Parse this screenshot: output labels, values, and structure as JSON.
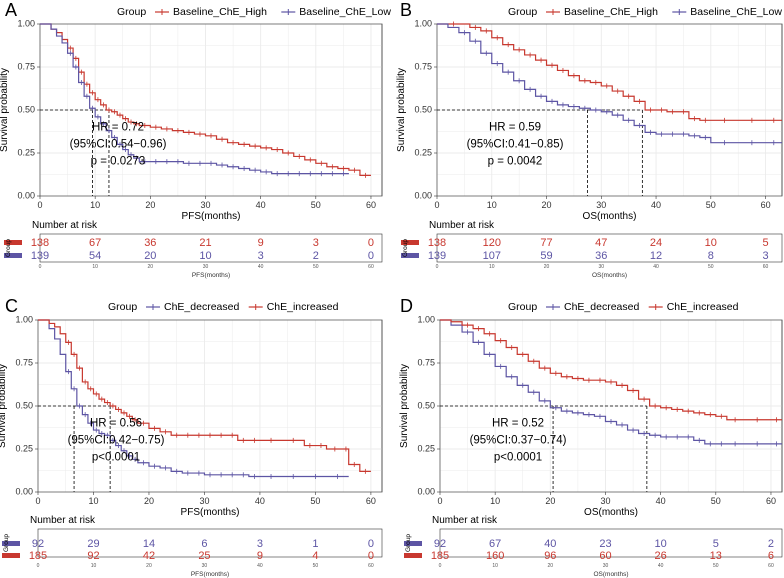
{
  "colors": {
    "red": "#C8382F",
    "blue": "#5D55A4",
    "grid": "#ebebeb",
    "axis": "#333333"
  },
  "chart_data": [
    {
      "panel_label": "A",
      "type": "line",
      "subtype": "kaplan-meier",
      "legend_title": "Group",
      "series": [
        {
          "name": "Baseline_ChE_High",
          "color": "red",
          "x": [
            0,
            2,
            3,
            4,
            5,
            6,
            7,
            8,
            9,
            10,
            11,
            12,
            13,
            14,
            15,
            16,
            17,
            18,
            20,
            22,
            24,
            26,
            28,
            30,
            32,
            34,
            36,
            38,
            40,
            42,
            44,
            46,
            48,
            50,
            52,
            54,
            56,
            58,
            60
          ],
          "y": [
            1.0,
            0.97,
            0.95,
            0.91,
            0.86,
            0.8,
            0.72,
            0.65,
            0.6,
            0.56,
            0.53,
            0.5,
            0.49,
            0.47,
            0.45,
            0.43,
            0.42,
            0.41,
            0.4,
            0.39,
            0.38,
            0.37,
            0.36,
            0.35,
            0.33,
            0.31,
            0.3,
            0.29,
            0.28,
            0.27,
            0.25,
            0.23,
            0.21,
            0.19,
            0.17,
            0.16,
            0.15,
            0.12,
            0.12
          ]
        },
        {
          "name": "Baseline_ChE_Low",
          "color": "blue",
          "x": [
            0,
            2,
            3,
            4,
            5,
            6,
            7,
            8,
            9,
            10,
            11,
            12,
            13,
            14,
            15,
            16,
            17,
            18,
            20,
            22,
            24,
            26,
            28,
            30,
            32,
            34,
            36,
            38,
            40,
            42,
            44,
            46,
            48,
            50,
            52,
            54,
            56
          ],
          "y": [
            1.0,
            0.97,
            0.93,
            0.89,
            0.83,
            0.75,
            0.66,
            0.58,
            0.51,
            0.46,
            0.42,
            0.38,
            0.34,
            0.3,
            0.27,
            0.24,
            0.22,
            0.2,
            0.2,
            0.2,
            0.2,
            0.19,
            0.19,
            0.19,
            0.18,
            0.17,
            0.16,
            0.15,
            0.14,
            0.13,
            0.13,
            0.13,
            0.13,
            0.13,
            0.13,
            0.13,
            0.13
          ]
        }
      ],
      "median_lines": [
        9.5,
        12.5
      ],
      "xlabel": "PFS(months)",
      "ylabel": "Survival probability",
      "xlim": [
        0,
        62
      ],
      "ylim": [
        0,
        1
      ],
      "xticks": [
        "0",
        "10",
        "20",
        "30",
        "40",
        "50",
        "60"
      ],
      "yticks": [
        "0.00",
        "0.25",
        "0.50",
        "0.75",
        "1.00"
      ],
      "annotation": [
        "HR = 0.72",
        "(95%CI:0.54−0.96)",
        "p = 0.0273"
      ],
      "risk_table": {
        "title": "Number at risk",
        "ylabel": "Group",
        "xlabel": "PFS(months)",
        "rows": [
          {
            "color": "red",
            "values": [
              "138",
              "67",
              "36",
              "21",
              "9",
              "3",
              "0"
            ]
          },
          {
            "color": "blue",
            "values": [
              "139",
              "54",
              "20",
              "10",
              "3",
              "2",
              "0"
            ]
          }
        ]
      }
    },
    {
      "panel_label": "B",
      "type": "line",
      "subtype": "kaplan-meier",
      "legend_title": "Group",
      "series": [
        {
          "name": "Baseline_ChE_High",
          "color": "red",
          "x": [
            0,
            6,
            8,
            10,
            12,
            14,
            16,
            18,
            20,
            22,
            24,
            26,
            28,
            30,
            32,
            34,
            36,
            38,
            40,
            42,
            44,
            46,
            48,
            50,
            55,
            60,
            63
          ],
          "y": [
            1.0,
            0.98,
            0.96,
            0.92,
            0.88,
            0.85,
            0.82,
            0.79,
            0.76,
            0.73,
            0.7,
            0.67,
            0.66,
            0.64,
            0.61,
            0.58,
            0.55,
            0.5,
            0.5,
            0.49,
            0.49,
            0.45,
            0.44,
            0.44,
            0.44,
            0.44,
            0.44
          ]
        },
        {
          "name": "Baseline_ChE_Low",
          "color": "blue",
          "x": [
            0,
            2,
            4,
            6,
            8,
            10,
            12,
            14,
            16,
            18,
            20,
            22,
            24,
            26,
            28,
            30,
            32,
            34,
            36,
            38,
            40,
            42,
            44,
            46,
            48,
            50,
            55,
            60,
            63
          ],
          "y": [
            1.0,
            0.98,
            0.95,
            0.9,
            0.83,
            0.77,
            0.72,
            0.67,
            0.62,
            0.58,
            0.55,
            0.53,
            0.52,
            0.51,
            0.5,
            0.49,
            0.47,
            0.44,
            0.41,
            0.37,
            0.36,
            0.36,
            0.36,
            0.35,
            0.34,
            0.31,
            0.31,
            0.31,
            0.31
          ]
        }
      ],
      "median_lines": [
        27.5,
        37.5
      ],
      "xlabel": "OS(months)",
      "ylabel": "Survival probability",
      "xlim": [
        0,
        63
      ],
      "ylim": [
        0,
        1
      ],
      "xticks": [
        "0",
        "10",
        "20",
        "30",
        "40",
        "50",
        "60"
      ],
      "yticks": [
        "0.00",
        "0.25",
        "0.50",
        "0.75",
        "1.00"
      ],
      "annotation": [
        "HR = 0.59",
        "(95%CI:0.41−0.85)",
        "p = 0.0042"
      ],
      "risk_table": {
        "title": "Number at risk",
        "ylabel": "Group",
        "xlabel": "OS(months)",
        "rows": [
          {
            "color": "red",
            "values": [
              "138",
              "120",
              "77",
              "47",
              "24",
              "10",
              "5"
            ]
          },
          {
            "color": "blue",
            "values": [
              "139",
              "107",
              "59",
              "36",
              "12",
              "8",
              "3"
            ]
          }
        ]
      }
    },
    {
      "panel_label": "C",
      "type": "line",
      "subtype": "kaplan-meier",
      "legend_title": "Group",
      "series": [
        {
          "name": "ChE_decreased",
          "color": "blue",
          "x": [
            0,
            2,
            3,
            4,
            5,
            6,
            7,
            8,
            9,
            10,
            11,
            12,
            13,
            14,
            15,
            16,
            17,
            18,
            20,
            22,
            24,
            26,
            28,
            30,
            32,
            34,
            36,
            38,
            40,
            44,
            48,
            52,
            56
          ],
          "y": [
            1.0,
            0.95,
            0.89,
            0.8,
            0.7,
            0.6,
            0.5,
            0.45,
            0.4,
            0.36,
            0.34,
            0.33,
            0.3,
            0.27,
            0.24,
            0.21,
            0.19,
            0.17,
            0.15,
            0.14,
            0.12,
            0.11,
            0.11,
            0.1,
            0.1,
            0.1,
            0.1,
            0.09,
            0.09,
            0.09,
            0.09,
            0.09,
            0.09
          ]
        },
        {
          "name": "ChE_increased",
          "color": "red",
          "x": [
            0,
            2,
            3,
            4,
            5,
            6,
            7,
            8,
            9,
            10,
            11,
            12,
            13,
            14,
            15,
            16,
            17,
            18,
            20,
            22,
            24,
            26,
            28,
            30,
            32,
            34,
            36,
            38,
            40,
            44,
            48,
            50,
            52,
            55,
            56,
            58,
            60
          ],
          "y": [
            1.0,
            0.98,
            0.96,
            0.92,
            0.87,
            0.8,
            0.72,
            0.64,
            0.6,
            0.57,
            0.54,
            0.52,
            0.5,
            0.48,
            0.46,
            0.44,
            0.42,
            0.4,
            0.37,
            0.35,
            0.33,
            0.33,
            0.33,
            0.33,
            0.33,
            0.33,
            0.3,
            0.3,
            0.3,
            0.3,
            0.27,
            0.27,
            0.25,
            0.25,
            0.16,
            0.12,
            0.12
          ]
        }
      ],
      "median_lines": [
        6.5,
        13
      ],
      "xlabel": "PFS(months)",
      "ylabel": "Survival probability",
      "xlim": [
        0,
        62
      ],
      "ylim": [
        0,
        1
      ],
      "xticks": [
        "0",
        "10",
        "20",
        "30",
        "40",
        "50",
        "60"
      ],
      "yticks": [
        "0.00",
        "0.25",
        "0.50",
        "0.75",
        "1.00"
      ],
      "annotation": [
        "HR = 0.56",
        "(95%CI:0.42−0.75)",
        "p<0.0001"
      ],
      "risk_table": {
        "title": "Number at risk",
        "ylabel": "Group",
        "xlabel": "PFS(months)",
        "rows": [
          {
            "color": "blue",
            "values": [
              "92",
              "29",
              "14",
              "6",
              "3",
              "1",
              "0"
            ]
          },
          {
            "color": "red",
            "values": [
              "185",
              "92",
              "42",
              "25",
              "9",
              "4",
              "0"
            ]
          }
        ]
      }
    },
    {
      "panel_label": "D",
      "type": "line",
      "subtype": "kaplan-meier",
      "legend_title": "Group",
      "series": [
        {
          "name": "ChE_decreased",
          "color": "blue",
          "x": [
            0,
            2,
            4,
            6,
            8,
            10,
            12,
            14,
            16,
            18,
            20,
            22,
            24,
            26,
            28,
            30,
            32,
            34,
            36,
            38,
            40,
            42,
            44,
            46,
            48,
            50,
            52,
            55,
            60,
            62
          ],
          "y": [
            1.0,
            0.97,
            0.93,
            0.87,
            0.8,
            0.73,
            0.67,
            0.62,
            0.58,
            0.53,
            0.49,
            0.47,
            0.46,
            0.45,
            0.44,
            0.41,
            0.39,
            0.36,
            0.34,
            0.33,
            0.32,
            0.32,
            0.32,
            0.3,
            0.28,
            0.28,
            0.28,
            0.28,
            0.28,
            0.28
          ]
        },
        {
          "name": "ChE_increased",
          "color": "red",
          "x": [
            0,
            2,
            4,
            6,
            8,
            10,
            12,
            14,
            16,
            18,
            20,
            22,
            24,
            26,
            28,
            30,
            32,
            34,
            36,
            38,
            40,
            42,
            44,
            46,
            48,
            50,
            52,
            55,
            60,
            62
          ],
          "y": [
            1.0,
            0.99,
            0.97,
            0.95,
            0.92,
            0.88,
            0.84,
            0.8,
            0.76,
            0.72,
            0.69,
            0.67,
            0.66,
            0.65,
            0.65,
            0.64,
            0.62,
            0.59,
            0.54,
            0.5,
            0.49,
            0.48,
            0.47,
            0.46,
            0.45,
            0.44,
            0.42,
            0.42,
            0.42,
            0.42
          ]
        }
      ],
      "median_lines": [
        20.5,
        37.5
      ],
      "xlabel": "OS(months)",
      "ylabel": "Survival probability",
      "xlim": [
        0,
        62
      ],
      "ylim": [
        0,
        1
      ],
      "xticks": [
        "0",
        "10",
        "20",
        "30",
        "40",
        "50",
        "60"
      ],
      "yticks": [
        "0.00",
        "0.25",
        "0.50",
        "0.75",
        "1.00"
      ],
      "annotation": [
        "HR = 0.52",
        "(95%CI:0.37−0.74)",
        "p<0.0001"
      ],
      "risk_table": {
        "title": "Number at risk",
        "ylabel": "Group",
        "xlabel": "OS(months)",
        "rows": [
          {
            "color": "blue",
            "values": [
              "92",
              "67",
              "40",
              "23",
              "10",
              "5",
              "2"
            ]
          },
          {
            "color": "red",
            "values": [
              "185",
              "160",
              "96",
              "60",
              "26",
              "13",
              "6"
            ]
          }
        ]
      }
    }
  ]
}
